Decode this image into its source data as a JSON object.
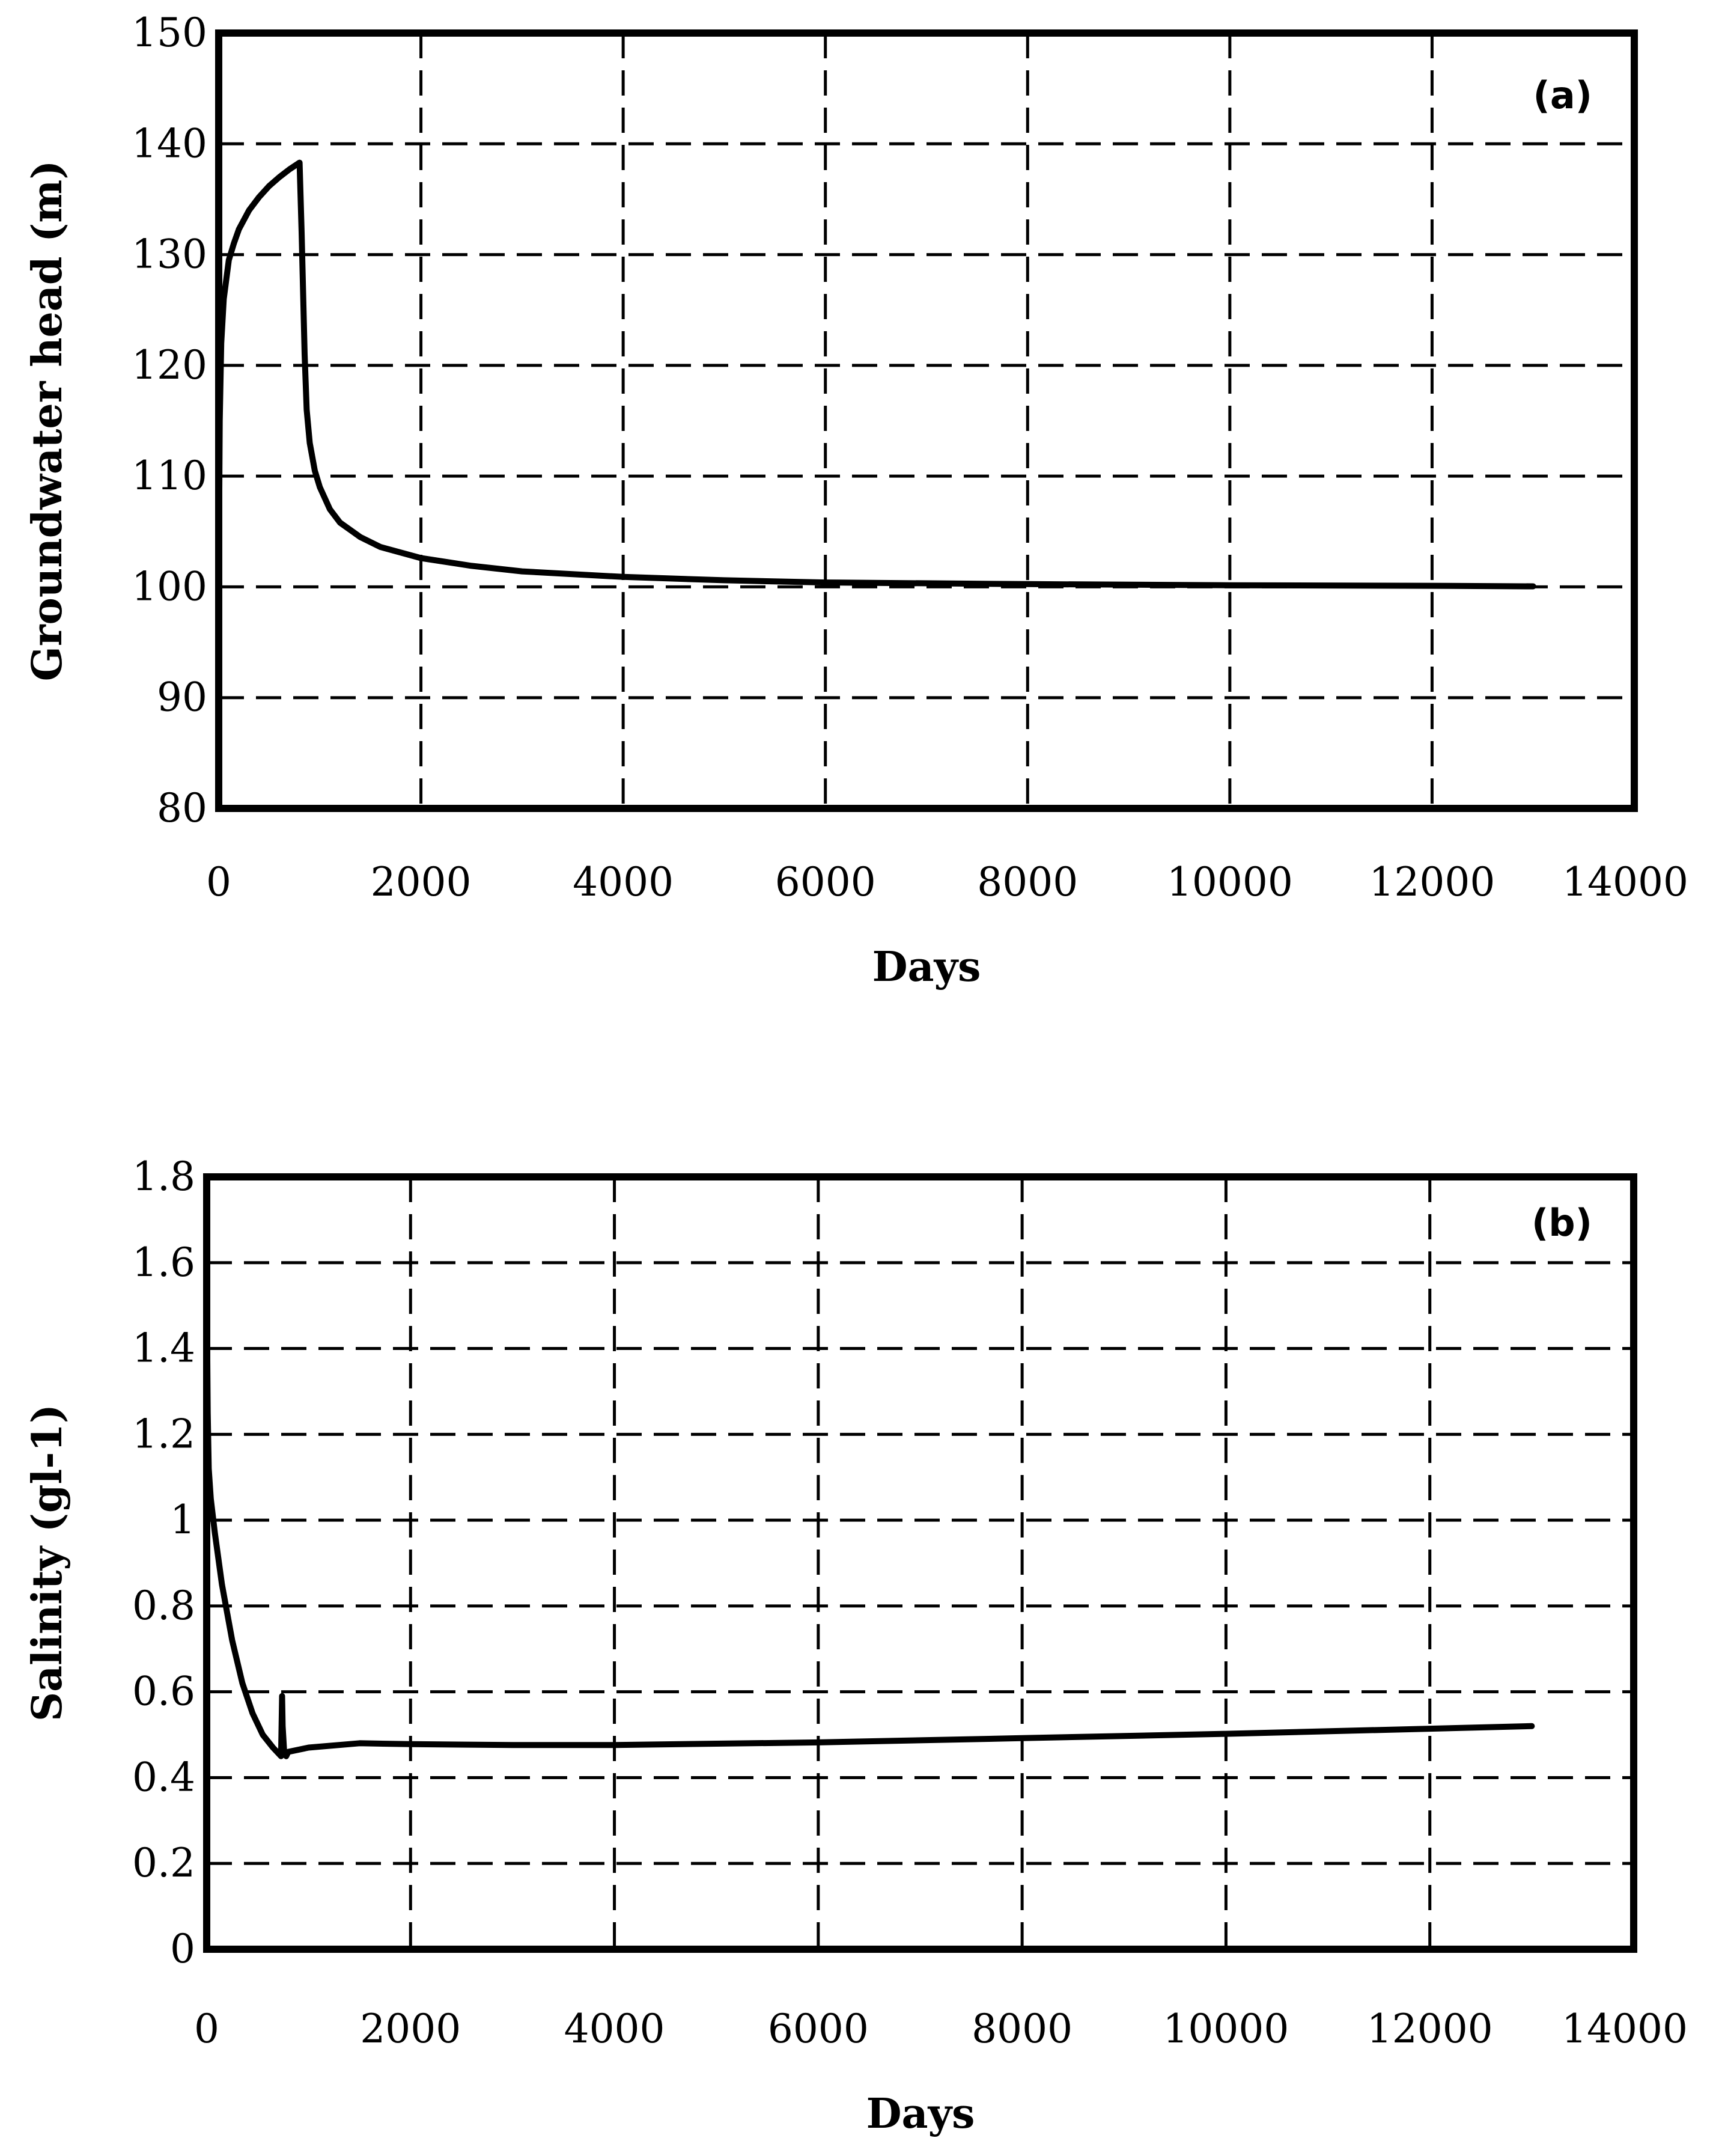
{
  "chart_data": [
    {
      "type": "line",
      "panel_label": "(a)",
      "xlabel": "Days",
      "ylabel": "Groundwater head (m)",
      "xlim": [
        0,
        14000
      ],
      "ylim": [
        80,
        150
      ],
      "xticks": [
        0,
        2000,
        4000,
        6000,
        8000,
        10000,
        12000,
        14000
      ],
      "yticks": [
        80,
        90,
        100,
        110,
        120,
        130,
        140,
        150
      ],
      "grid": true,
      "series": [
        {
          "color": "#000000",
          "x": [
            0,
            10,
            25,
            50,
            100,
            150,
            200,
            300,
            400,
            500,
            600,
            700,
            800,
            820,
            850,
            870,
            900,
            950,
            1000,
            1100,
            1200,
            1400,
            1600,
            2000,
            2500,
            3000,
            4000,
            5000,
            6000,
            8000,
            10000,
            12000,
            13000
          ],
          "y": [
            100,
            115,
            122,
            126,
            129.5,
            131,
            132.3,
            134,
            135.2,
            136.2,
            137,
            137.7,
            138.3,
            132,
            121,
            116,
            113,
            110.5,
            109,
            107,
            105.8,
            104.5,
            103.6,
            102.6,
            101.9,
            101.4,
            100.9,
            100.6,
            100.4,
            100.25,
            100.15,
            100.1,
            100.05
          ]
        }
      ]
    },
    {
      "type": "line",
      "panel_label": "(b)",
      "xlabel": "Days",
      "ylabel": "Salinity (gl-1)",
      "xlim": [
        0,
        14000
      ],
      "ylim": [
        0,
        1.8
      ],
      "xticks": [
        0,
        2000,
        4000,
        6000,
        8000,
        10000,
        12000,
        14000
      ],
      "yticks": [
        0,
        0.2,
        0.4,
        0.6,
        0.8,
        1,
        1.2,
        1.4,
        1.6,
        1.8
      ],
      "grid": true,
      "series": [
        {
          "color": "#000000",
          "x": [
            0,
            10,
            20,
            40,
            80,
            150,
            250,
            350,
            450,
            550,
            650,
            730,
            740,
            745,
            760,
            780,
            800,
            1000,
            1500,
            2000,
            3000,
            4000,
            6000,
            8000,
            10000,
            12000,
            13000
          ],
          "y": [
            1.55,
            1.25,
            1.12,
            1.05,
            0.97,
            0.85,
            0.72,
            0.62,
            0.55,
            0.5,
            0.47,
            0.45,
            0.59,
            0.52,
            0.46,
            0.45,
            0.46,
            0.47,
            0.48,
            0.478,
            0.476,
            0.476,
            0.482,
            0.492,
            0.502,
            0.514,
            0.52
          ]
        }
      ]
    }
  ]
}
